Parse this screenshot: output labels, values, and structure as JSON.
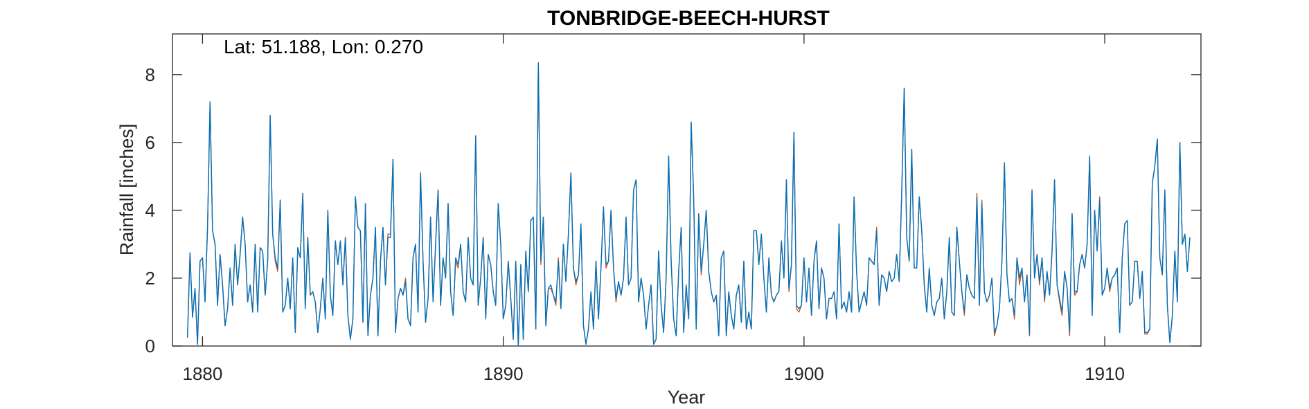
{
  "chart_data": {
    "type": "line",
    "title": "TONBRIDGE-BEECH-HURST",
    "annotation": "Lat: 51.188, Lon: 0.270",
    "xlabel": "Year",
    "ylabel": "Rainfall [inches]",
    "xlim": [
      1879.0,
      1913.2
    ],
    "ylim": [
      0,
      9.2
    ],
    "xticks": [
      1880,
      1890,
      1900,
      1910
    ],
    "yticks": [
      0,
      2,
      4,
      6,
      8
    ],
    "grid": false,
    "legend": "none",
    "series": [
      {
        "color": "#D95319",
        "start": 1879.5,
        "step": 0.08333,
        "values": [
          0.25,
          2.75,
          0.85,
          1.7,
          0.05,
          2.5,
          2.6,
          1.3,
          3.5,
          7.2,
          3.4,
          3.0,
          1.2,
          2.7,
          1.8,
          0.6,
          1.1,
          2.3,
          1.2,
          3.0,
          1.8,
          2.7,
          3.8,
          3.0,
          1.3,
          1.8,
          1.0,
          3.0,
          1.0,
          2.9,
          2.8,
          1.5,
          2.5,
          6.8,
          3.3,
          2.5,
          2.2,
          4.3,
          1.0,
          1.2,
          2.0,
          1.1,
          2.6,
          0.4,
          2.9,
          2.6,
          4.5,
          1.1,
          3.2,
          1.5,
          1.6,
          1.3,
          0.4,
          1.1,
          2.0,
          0.8,
          4.0,
          1.5,
          0.9,
          3.1,
          2.4,
          3.1,
          1.8,
          3.2,
          0.9,
          0.2,
          0.8,
          4.4,
          3.5,
          3.4,
          0.7,
          4.2,
          0.3,
          1.5,
          2.0,
          3.5,
          0.3,
          2.5,
          3.5,
          1.8,
          3.3,
          3.3,
          5.5,
          0.4,
          1.4,
          1.7,
          1.5,
          2.0,
          0.8,
          0.6,
          2.6,
          3.0,
          1.0,
          5.1,
          2.5,
          0.7,
          1.4,
          3.8,
          1.3,
          3.0,
          4.6,
          1.2,
          2.6,
          2.0,
          4.2,
          1.6,
          0.9,
          2.5,
          2.3,
          3.0,
          1.6,
          1.3,
          3.2,
          2.0,
          1.8,
          6.2,
          1.2,
          2.0,
          3.2,
          0.8,
          2.7,
          2.4,
          1.6,
          1.2,
          4.2,
          3.0,
          0.8,
          1.2,
          2.5,
          1.4,
          0.2,
          2.5,
          0.0,
          2.4,
          0.2,
          2.8,
          1.6,
          3.7,
          3.8,
          0.5,
          8.35,
          2.4,
          3.8,
          0.6,
          1.7,
          1.7,
          1.5,
          1.2,
          2.6,
          1.1,
          3.0,
          1.9,
          3.3,
          5.1,
          2.3,
          1.8,
          2.1,
          3.6,
          0.6,
          0.05,
          0.5,
          1.6,
          0.5,
          2.5,
          0.8,
          2.3,
          4.1,
          2.3,
          2.5,
          4.0,
          2.3,
          1.3,
          1.9,
          1.5,
          2.0,
          3.8,
          1.8,
          2.0,
          4.6,
          4.9,
          1.3,
          2.0,
          1.5,
          0.5,
          1.2,
          1.8,
          0.05,
          0.2,
          2.8,
          1.2,
          0.4,
          2.0,
          5.6,
          2.5,
          0.8,
          0.3,
          2.2,
          3.5,
          0.4,
          1.8,
          0.8,
          6.6,
          4.4,
          0.5,
          3.9,
          2.1,
          3.0,
          4.0,
          2.2,
          1.6,
          1.3,
          1.5,
          0.3,
          2.6,
          2.8,
          0.3,
          1.6,
          0.9,
          0.5,
          1.5,
          1.8,
          0.7,
          2.5,
          0.5,
          1.0,
          0.5,
          3.4,
          3.4,
          2.4,
          3.3,
          2.0,
          1.0,
          2.6,
          1.5,
          1.3,
          1.5,
          1.6,
          3.1,
          2.0,
          4.9,
          1.6,
          2.4,
          6.3,
          1.1,
          1.0,
          1.2,
          2.6,
          1.3,
          2.3,
          0.9,
          2.5,
          3.1,
          1.1,
          2.3,
          2.0,
          0.8,
          1.4,
          1.4,
          1.6,
          0.8,
          3.6,
          1.1,
          1.3,
          1.0,
          1.6,
          1.0,
          4.4,
          2.2,
          1.0,
          1.3,
          1.6,
          1.2,
          2.6,
          2.5,
          2.4,
          3.5,
          1.2,
          2.1,
          2.0,
          1.6,
          2.2,
          1.9,
          2.0,
          2.7,
          1.9,
          4.5,
          7.6,
          3.2,
          2.5,
          5.8,
          2.3,
          2.3,
          4.4,
          3.4,
          1.8,
          1.0,
          2.3,
          1.2,
          0.9,
          1.3,
          1.4,
          2.0,
          0.8,
          1.6,
          3.2,
          1.0,
          0.9,
          3.5,
          2.5,
          1.6,
          0.9,
          2.1,
          1.7,
          1.5,
          1.4,
          4.5,
          1.2,
          4.3,
          1.6,
          1.3,
          1.5,
          2.0,
          0.3,
          0.6,
          1.1,
          2.5,
          5.4,
          2.1,
          1.3,
          1.4,
          0.8,
          2.6,
          1.8,
          2.3,
          1.3,
          2.1,
          0.3,
          4.6,
          2.0,
          2.7,
          1.8,
          2.6,
          1.3,
          2.2,
          1.5,
          2.8,
          4.9,
          1.8,
          1.3,
          0.9,
          2.2,
          1.7,
          0.3,
          3.9,
          1.5,
          1.6,
          2.4,
          2.7,
          2.3,
          3.0,
          5.6,
          0.9,
          4.0,
          2.8,
          4.4,
          1.5,
          1.7,
          2.3,
          1.6,
          2.0,
          2.1,
          2.3,
          0.4,
          2.6,
          3.6,
          3.7,
          1.2,
          1.3,
          2.5,
          2.5,
          1.4,
          2.2,
          0.35,
          0.35,
          0.5,
          4.8,
          5.3,
          6.1,
          2.6,
          2.1,
          4.6,
          1.2,
          0.1,
          0.9,
          2.8,
          1.3,
          6.0,
          3.0,
          3.3,
          2.2,
          3.2
        ]
      },
      {
        "color": "#0072BD",
        "start": 1879.5,
        "step": 0.08333,
        "values": [
          0.25,
          2.75,
          0.85,
          1.7,
          0.05,
          2.5,
          2.6,
          1.3,
          3.5,
          7.2,
          3.4,
          3.0,
          1.2,
          2.7,
          1.8,
          0.6,
          1.1,
          2.3,
          1.2,
          3.0,
          1.8,
          2.7,
          3.8,
          3.0,
          1.3,
          1.8,
          1.0,
          3.0,
          1.0,
          2.9,
          2.8,
          1.5,
          2.5,
          6.8,
          3.3,
          2.6,
          2.3,
          4.3,
          1.0,
          1.2,
          2.0,
          1.1,
          2.6,
          0.4,
          2.9,
          2.6,
          4.5,
          1.1,
          3.2,
          1.5,
          1.6,
          1.3,
          0.4,
          1.1,
          2.0,
          0.8,
          4.0,
          1.5,
          0.9,
          3.1,
          2.4,
          3.1,
          1.8,
          3.2,
          0.9,
          0.2,
          0.8,
          4.4,
          3.5,
          3.4,
          0.7,
          4.2,
          0.3,
          1.5,
          2.0,
          3.5,
          0.3,
          2.5,
          3.5,
          1.8,
          3.2,
          3.2,
          5.5,
          0.4,
          1.4,
          1.7,
          1.5,
          1.9,
          0.8,
          0.6,
          2.6,
          3.0,
          1.0,
          5.1,
          2.5,
          0.7,
          1.4,
          3.8,
          1.3,
          3.0,
          4.6,
          1.2,
          2.6,
          2.0,
          4.2,
          1.6,
          0.9,
          2.6,
          2.4,
          3.0,
          1.6,
          1.3,
          3.2,
          2.0,
          1.8,
          6.2,
          1.2,
          2.0,
          3.2,
          0.8,
          2.7,
          2.4,
          1.6,
          1.2,
          4.2,
          3.0,
          0.8,
          1.2,
          2.5,
          1.4,
          0.2,
          2.5,
          0.0,
          2.4,
          0.2,
          2.8,
          1.6,
          3.7,
          3.8,
          0.5,
          8.35,
          2.5,
          3.8,
          0.6,
          1.7,
          1.8,
          1.5,
          1.3,
          2.5,
          1.1,
          3.0,
          1.9,
          3.3,
          5.1,
          2.3,
          1.9,
          2.1,
          3.6,
          0.6,
          0.05,
          0.5,
          1.6,
          0.5,
          2.5,
          0.8,
          2.3,
          4.1,
          2.4,
          2.5,
          4.0,
          2.3,
          1.4,
          1.9,
          1.5,
          2.0,
          3.8,
          1.8,
          2.0,
          4.6,
          4.9,
          1.3,
          2.0,
          1.5,
          0.5,
          1.2,
          1.8,
          0.05,
          0.2,
          2.8,
          1.2,
          0.4,
          2.0,
          5.6,
          2.5,
          0.8,
          0.3,
          2.2,
          3.5,
          0.4,
          1.8,
          0.8,
          6.6,
          4.3,
          0.5,
          3.9,
          2.2,
          3.0,
          4.0,
          2.2,
          1.6,
          1.3,
          1.5,
          0.3,
          2.6,
          2.8,
          0.3,
          1.6,
          0.9,
          0.5,
          1.5,
          1.8,
          0.7,
          2.5,
          0.5,
          1.0,
          0.5,
          3.4,
          3.4,
          2.4,
          3.3,
          2.0,
          1.0,
          2.6,
          1.5,
          1.3,
          1.5,
          1.6,
          3.1,
          2.0,
          4.9,
          1.7,
          2.4,
          6.3,
          1.2,
          1.1,
          1.2,
          2.6,
          1.3,
          2.3,
          0.9,
          2.5,
          3.1,
          1.1,
          2.3,
          2.0,
          0.8,
          1.4,
          1.4,
          1.6,
          0.8,
          3.6,
          1.1,
          1.3,
          1.0,
          1.6,
          1.0,
          4.4,
          2.2,
          1.0,
          1.3,
          1.6,
          1.2,
          2.6,
          2.5,
          2.4,
          3.4,
          1.2,
          2.1,
          2.0,
          1.6,
          2.2,
          1.9,
          2.0,
          2.7,
          1.9,
          4.5,
          7.6,
          3.2,
          2.5,
          5.8,
          2.3,
          2.3,
          4.4,
          3.4,
          1.8,
          1.0,
          2.3,
          1.2,
          0.9,
          1.3,
          1.4,
          2.0,
          0.8,
          1.6,
          3.2,
          1.0,
          0.9,
          3.5,
          2.5,
          1.6,
          1.0,
          2.1,
          1.7,
          1.5,
          1.4,
          4.4,
          1.2,
          4.2,
          1.6,
          1.3,
          1.5,
          2.0,
          0.4,
          0.6,
          1.1,
          2.5,
          5.4,
          2.1,
          1.3,
          1.4,
          0.9,
          2.6,
          2.0,
          2.3,
          1.3,
          2.1,
          0.35,
          4.6,
          2.0,
          2.7,
          1.9,
          2.6,
          1.4,
          2.2,
          1.5,
          2.8,
          4.9,
          1.8,
          1.4,
          1.0,
          2.2,
          1.7,
          0.4,
          3.9,
          1.6,
          1.6,
          2.4,
          2.7,
          2.3,
          3.0,
          5.6,
          0.9,
          4.0,
          2.8,
          4.3,
          1.5,
          1.7,
          2.3,
          1.7,
          2.0,
          2.1,
          2.3,
          0.4,
          2.6,
          3.6,
          3.7,
          1.2,
          1.3,
          2.5,
          2.5,
          1.4,
          2.2,
          0.4,
          0.4,
          0.5,
          4.8,
          5.3,
          6.1,
          2.6,
          2.1,
          4.6,
          1.2,
          0.1,
          0.9,
          2.8,
          1.3,
          6.0,
          3.0,
          3.3,
          2.2,
          3.2
        ]
      }
    ]
  }
}
